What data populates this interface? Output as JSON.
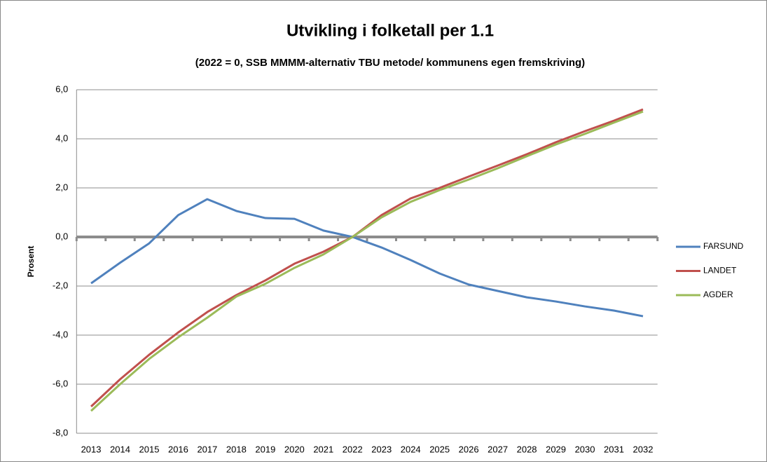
{
  "chart_data": {
    "type": "line",
    "title": "Utvikling i folketall per 1.1",
    "subtitle": "(2022 = 0, SSB MMMM-alternativ TBU metode/ kommunens egen fremskriving)",
    "y_label": "Prosent",
    "categories": [
      "2013",
      "2014",
      "2015",
      "2016",
      "2017",
      "2018",
      "2019",
      "2020",
      "2021",
      "2022",
      "2023",
      "2024",
      "2025",
      "2026",
      "2027",
      "2028",
      "2029",
      "2030",
      "2031",
      "2032"
    ],
    "series": [
      {
        "name": "FARSUND",
        "color": "#4f81bd",
        "values": [
          -1.89,
          -1.05,
          -0.26,
          0.89,
          1.54,
          1.06,
          0.77,
          0.74,
          0.26,
          0,
          -0.43,
          -0.94,
          -1.49,
          -1.94,
          -2.2,
          -2.46,
          -2.63,
          -2.83,
          -3.0,
          -3.23
        ]
      },
      {
        "name": "LANDET",
        "color": "#c0504d",
        "values": [
          -6.91,
          -5.8,
          -4.8,
          -3.89,
          -3.06,
          -2.37,
          -1.77,
          -1.09,
          -0.6,
          0,
          0.89,
          1.57,
          2.0,
          2.46,
          2.91,
          3.37,
          3.86,
          4.31,
          4.74,
          5.2
        ]
      },
      {
        "name": "AGDER",
        "color": "#9bbb59",
        "values": [
          -7.09,
          -6.0,
          -4.97,
          -4.09,
          -3.29,
          -2.43,
          -1.91,
          -1.26,
          -0.71,
          0,
          0.8,
          1.43,
          1.91,
          2.34,
          2.8,
          3.29,
          3.77,
          4.2,
          4.66,
          5.11
        ]
      }
    ],
    "ylim": [
      -8,
      6
    ],
    "yticks": [
      {
        "value": -8,
        "label": "-8,0"
      },
      {
        "value": -6,
        "label": "-6,0"
      },
      {
        "value": -4,
        "label": "-4,0"
      },
      {
        "value": -2,
        "label": "-2,0"
      },
      {
        "value": 0,
        "label": "0,0"
      },
      {
        "value": 2,
        "label": "2,0"
      },
      {
        "value": 4,
        "label": "4,0"
      },
      {
        "value": 6,
        "label": "6,0"
      }
    ],
    "grid": true,
    "legend": "right"
  }
}
